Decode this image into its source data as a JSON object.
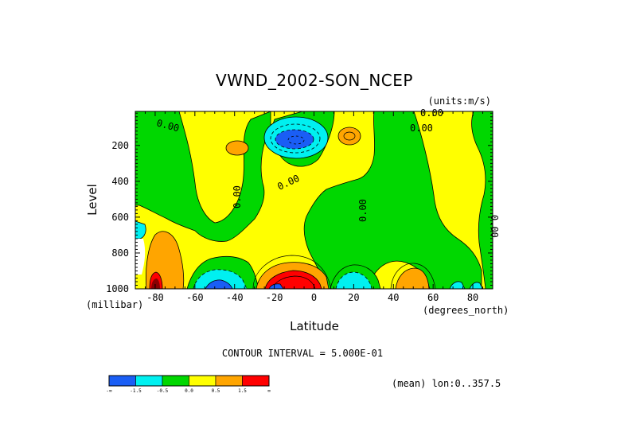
{
  "chart_data": {
    "type": "heatmap",
    "title": "VWND_2002-SON_NCEP",
    "units_label": "(units:m/s)",
    "xlabel": "Latitude",
    "ylabel": "Level",
    "x_unit_label": "(degrees_north)",
    "y_unit_label": "(millibar)",
    "xlim": [
      -90,
      90
    ],
    "ylim": [
      1000,
      10
    ],
    "x_ticks": [
      -80,
      -60,
      -40,
      -20,
      0,
      20,
      40,
      60,
      80
    ],
    "y_ticks": [
      200,
      400,
      600,
      800,
      1000
    ],
    "contour_interval_label": "CONTOUR INTERVAL = 5.000E-01",
    "footer_label": "(mean) lon:0..357.5",
    "contour_labels": [
      "0.00",
      "0.00",
      "0.00",
      "0.00",
      "0.00",
      "0.00",
      "0.00"
    ],
    "colorbar": {
      "colors": [
        "#1a5ef5",
        "#00f0f0",
        "#00d700",
        "#ffff00",
        "#ffa500",
        "#ff0000"
      ],
      "labels": [
        "-∞",
        "-1.5",
        "-0.5",
        "0.0",
        "0.5",
        "1.5",
        "∞"
      ]
    },
    "regions": [
      {
        "level": "negative",
        "color": "#00d700",
        "lat": [
          -90,
          -60
        ],
        "lev": [
          10,
          1000
        ]
      },
      {
        "level": "negative",
        "color": "#00d700",
        "lat": [
          -55,
          -25
        ],
        "lev": [
          10,
          950
        ]
      },
      {
        "level": "negative",
        "color": "#00d700",
        "lat": [
          10,
          60
        ],
        "lev": [
          10,
          1000
        ]
      },
      {
        "level": "negative",
        "color": "#00d700",
        "lat": [
          75,
          90
        ],
        "lev": [
          10,
          1000
        ]
      },
      {
        "level": "strong-negative",
        "color": "#1a5ef5",
        "lat": [
          -18,
          -4
        ],
        "lev": [
          100,
          250
        ]
      },
      {
        "level": "strong-positive",
        "color": "#ff0000",
        "lat": [
          -20,
          0
        ],
        "lev": [
          900,
          1000
        ]
      },
      {
        "level": "positive",
        "color": "#ffa500",
        "lat": [
          -85,
          -75
        ],
        "lev": [
          700,
          1000
        ]
      },
      {
        "level": "positive",
        "color": "#ffa500",
        "lat": [
          45,
          55
        ],
        "lev": [
          920,
          1000
        ]
      }
    ]
  }
}
